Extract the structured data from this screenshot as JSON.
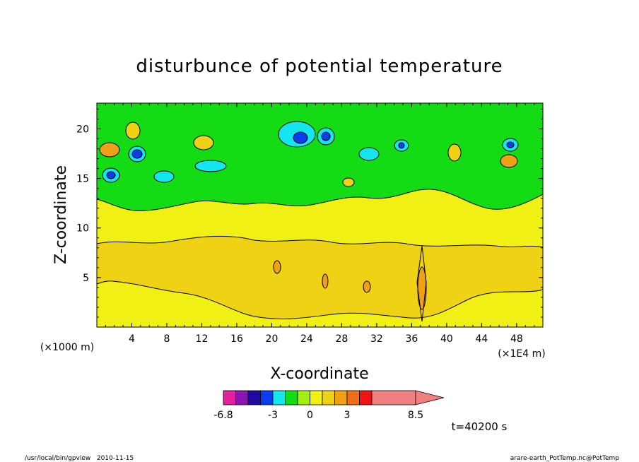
{
  "chart_data": {
    "type": "heatmap",
    "title": "disturbunce of potential temperature",
    "xlabel": "X-coordinate",
    "ylabel": "Z-coordinate",
    "x_scale_note": "(×1E4 m)",
    "y_scale_note": "(×1000 m)",
    "xlim": [
      0,
      51
    ],
    "ylim": [
      0,
      22.6
    ],
    "xticks": [
      "4",
      "8",
      "12",
      "16",
      "20",
      "24",
      "28",
      "32",
      "36",
      "40",
      "44",
      "48"
    ],
    "yticks": [
      "5",
      "10",
      "15",
      "20"
    ],
    "colorbar": {
      "colors": [
        "#e61ea0",
        "#8c14b4",
        "#1e0aa0",
        "#0a3cf0",
        "#14e6f0",
        "#14dc14",
        "#a0f014",
        "#f0f014",
        "#f0d214",
        "#f0a014",
        "#f06e14",
        "#f01414",
        "#f08080"
      ],
      "labels": [
        "-6.8",
        "-3",
        "0",
        "3",
        "8.5"
      ],
      "extend": "max"
    },
    "time_label": "t=40200 s"
  },
  "footer": {
    "left": "/usr/local/bin/gpview   2010-11-15",
    "right": "arare-earth_PotTemp.nc@PotTemp"
  }
}
